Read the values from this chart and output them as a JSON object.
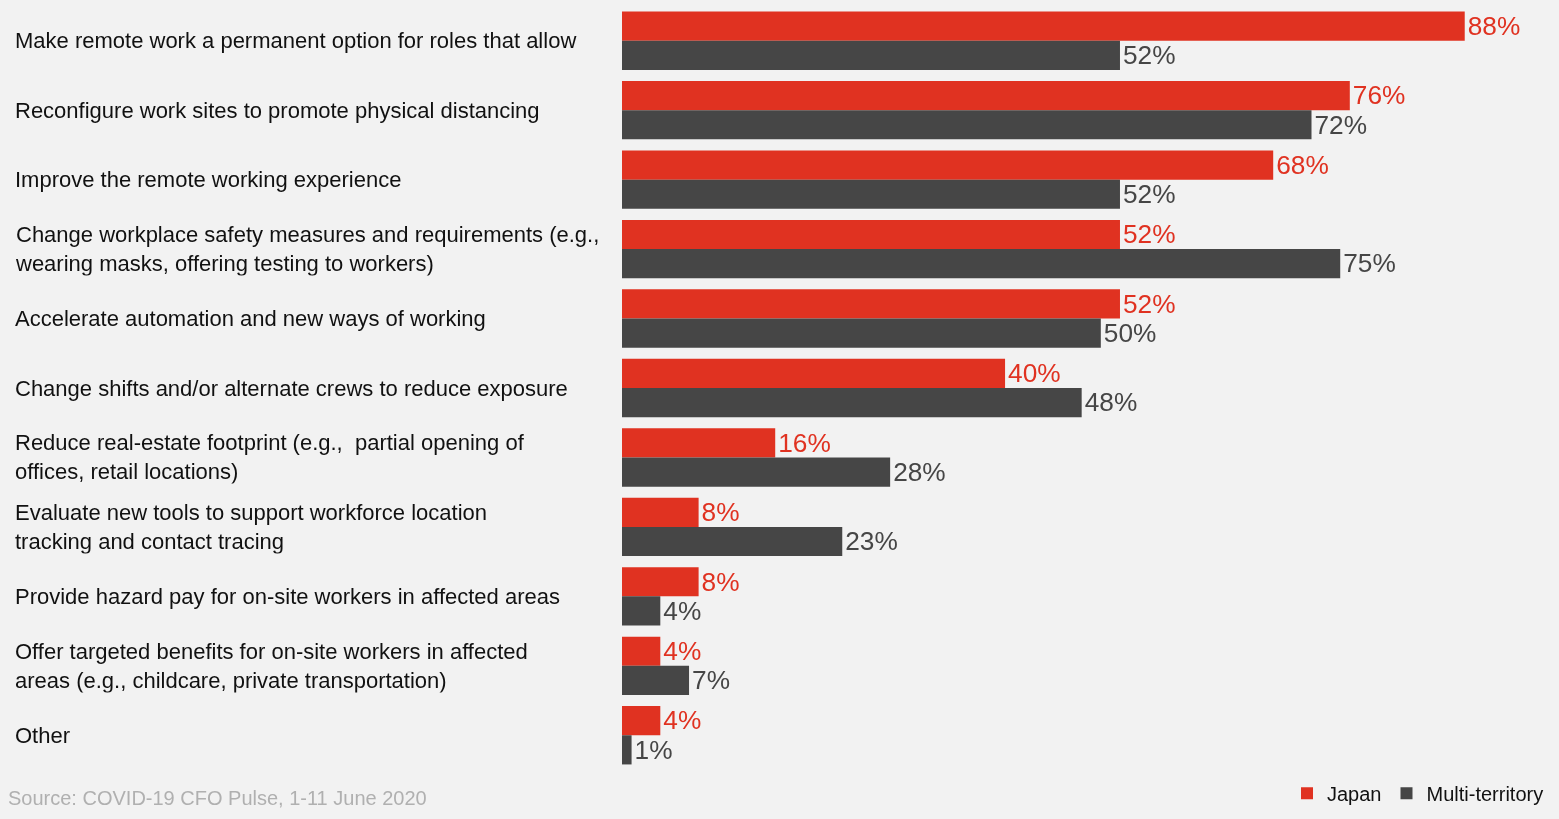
{
  "chart_data": {
    "type": "bar",
    "orientation": "horizontal",
    "legend": "bottom right",
    "categories": [
      "Make remote work a permanent option for roles that allow",
      "Reconfigure work sites to promote physical distancing",
      "Improve the remote working experience",
      "Change workplace safety measures and requirements (e.g., wearing masks, offering testing to workers)",
      "Accelerate automation and new ways of working",
      "Change shifts and/or alternate crews to reduce exposure",
      "Reduce real-estate footprint (e.g.,  partial opening of offices, retail locations)",
      "Evaluate new tools to support workforce location tracking and contact tracing",
      "Provide hazard pay for on-site workers in affected areas",
      "Offer targeted benefits for on-site workers in affected areas (e.g., childcare, private transportation)",
      "Other"
    ],
    "series": [
      {
        "name": "Japan",
        "color": "#e03221",
        "values": [
          88,
          76,
          68,
          52,
          52,
          40,
          16,
          8,
          8,
          4,
          4
        ],
        "value_labels": [
          "88%",
          "76%",
          "68%",
          "52%",
          "52%",
          "40%",
          "16%",
          "8%",
          "8%",
          "4%",
          "4%"
        ]
      },
      {
        "name": "Multi-territory",
        "color": "#464646",
        "values": [
          52,
          72,
          52,
          75,
          50,
          48,
          28,
          23,
          4,
          7,
          1
        ],
        "value_labels": [
          "52%",
          "72%",
          "52%",
          "75%",
          "50%",
          "48%",
          "28%",
          "23%",
          "4%",
          "7%",
          "1%"
        ]
      }
    ],
    "annotations": [
      "Source: COVID-19 CFO Pulse, 1-11 June 2020"
    ]
  }
}
